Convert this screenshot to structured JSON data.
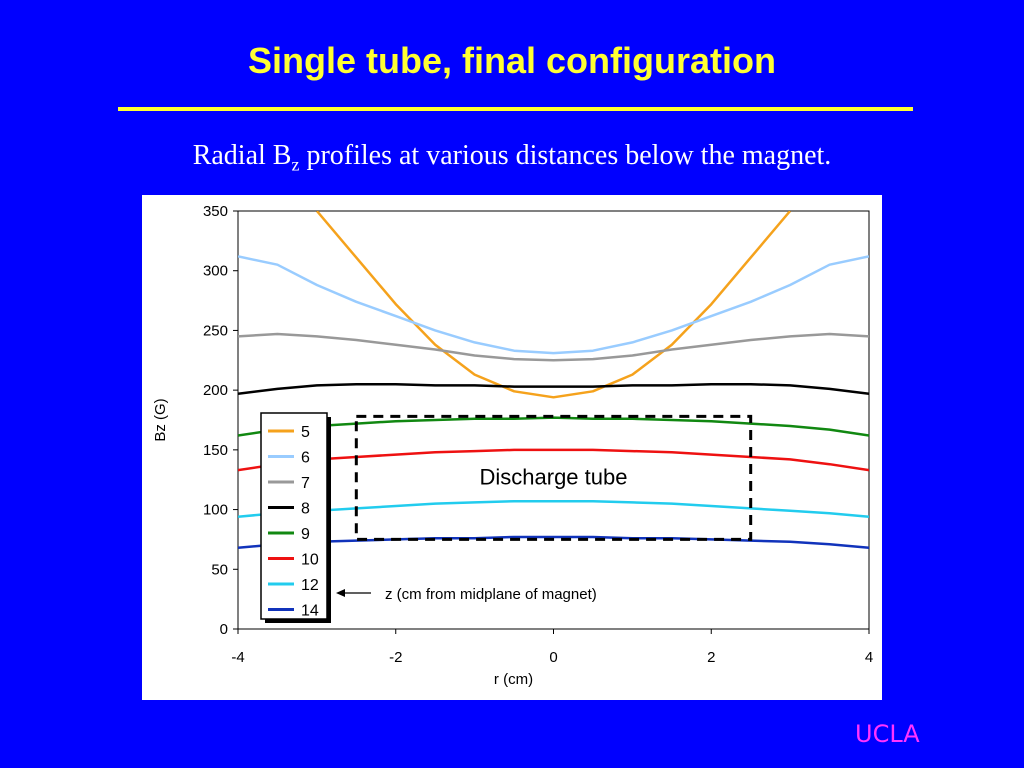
{
  "slide": {
    "title": "Single tube, final configuration",
    "subtitle_prefix": "Radial B",
    "subtitle_sub": "z",
    "subtitle_suffix": " profiles at various distances below the magnet.",
    "footer": "UCLA"
  },
  "colors": {
    "background": "#0000ff",
    "title": "#ffff33",
    "footer": "#ff33ff"
  },
  "chart_data": {
    "type": "line",
    "xlabel": "r (cm)",
    "ylabel": "Bz (G)",
    "xlim": [
      -4,
      4
    ],
    "ylim": [
      0,
      350
    ],
    "xticks": [
      -4,
      -2,
      0,
      2,
      4
    ],
    "yticks": [
      0,
      50,
      100,
      150,
      200,
      250,
      300,
      350
    ],
    "grid": false,
    "legend_position": "bottom-left",
    "legend_title": "z (cm from midplane of magnet)",
    "annotation": {
      "text": "Discharge tube",
      "box_x": [
        -2.5,
        2.5
      ],
      "box_y": [
        75,
        178
      ]
    },
    "series": [
      {
        "name": "5",
        "color": "#f5a21c",
        "x": [
          -3.0,
          -2.5,
          -2.0,
          -1.5,
          -1.0,
          -0.5,
          0.0,
          0.5,
          1.0,
          1.5,
          2.0,
          2.5,
          3.0
        ],
        "y": [
          350,
          311,
          272,
          238,
          213,
          199,
          194,
          199,
          213,
          238,
          272,
          311,
          350
        ]
      },
      {
        "name": "6",
        "color": "#99ccff",
        "x": [
          -4.0,
          -3.5,
          -3.0,
          -2.5,
          -2.0,
          -1.5,
          -1.0,
          -0.5,
          0.0,
          0.5,
          1.0,
          1.5,
          2.0,
          2.5,
          3.0,
          3.5,
          4.0
        ],
        "y": [
          312,
          305,
          288,
          274,
          262,
          250,
          240,
          233,
          231,
          233,
          240,
          250,
          262,
          274,
          288,
          305,
          312
        ]
      },
      {
        "name": "7",
        "color": "#999999",
        "x": [
          -4.0,
          -3.5,
          -3.0,
          -2.5,
          -2.0,
          -1.5,
          -1.0,
          -0.5,
          0.0,
          0.5,
          1.0,
          1.5,
          2.0,
          2.5,
          3.0,
          3.5,
          4.0
        ],
        "y": [
          245,
          247,
          245,
          242,
          238,
          234,
          229,
          226,
          225,
          226,
          229,
          234,
          238,
          242,
          245,
          247,
          245
        ]
      },
      {
        "name": "8",
        "color": "#000000",
        "x": [
          -4.0,
          -3.5,
          -3.0,
          -2.5,
          -2.0,
          -1.5,
          -1.0,
          -0.5,
          0.0,
          0.5,
          1.0,
          1.5,
          2.0,
          2.5,
          3.0,
          3.5,
          4.0
        ],
        "y": [
          197,
          201,
          204,
          205,
          205,
          204,
          204,
          203,
          203,
          203,
          204,
          204,
          205,
          205,
          204,
          201,
          197
        ]
      },
      {
        "name": "9",
        "color": "#118811",
        "x": [
          -4.0,
          -3.5,
          -3.0,
          -2.5,
          -2.0,
          -1.5,
          -1.0,
          -0.5,
          0.0,
          0.5,
          1.0,
          1.5,
          2.0,
          2.5,
          3.0,
          3.5,
          4.0
        ],
        "y": [
          162,
          167,
          170,
          172,
          174,
          175,
          176,
          176,
          177,
          176,
          176,
          175,
          174,
          172,
          170,
          167,
          162
        ]
      },
      {
        "name": "10",
        "color": "#ee1111",
        "x": [
          -4.0,
          -3.5,
          -3.0,
          -2.5,
          -2.0,
          -1.5,
          -1.0,
          -0.5,
          0.0,
          0.5,
          1.0,
          1.5,
          2.0,
          2.5,
          3.0,
          3.5,
          4.0
        ],
        "y": [
          133,
          138,
          142,
          144,
          146,
          148,
          149,
          150,
          150,
          150,
          149,
          148,
          146,
          144,
          142,
          138,
          133
        ]
      },
      {
        "name": "12",
        "color": "#22ccee",
        "x": [
          -4.0,
          -3.5,
          -3.0,
          -2.5,
          -2.0,
          -1.5,
          -1.0,
          -0.5,
          0.0,
          0.5,
          1.0,
          1.5,
          2.0,
          2.5,
          3.0,
          3.5,
          4.0
        ],
        "y": [
          94,
          97,
          99,
          101,
          103,
          105,
          106,
          107,
          107,
          107,
          106,
          105,
          103,
          101,
          99,
          97,
          94
        ]
      },
      {
        "name": "14",
        "color": "#1133bb",
        "x": [
          -4.0,
          -3.5,
          -3.0,
          -2.5,
          -2.0,
          -1.5,
          -1.0,
          -0.5,
          0.0,
          0.5,
          1.0,
          1.5,
          2.0,
          2.5,
          3.0,
          3.5,
          4.0
        ],
        "y": [
          68,
          71,
          73,
          74,
          75,
          76,
          76,
          77,
          77,
          77,
          76,
          76,
          75,
          74,
          73,
          71,
          68
        ]
      }
    ]
  }
}
